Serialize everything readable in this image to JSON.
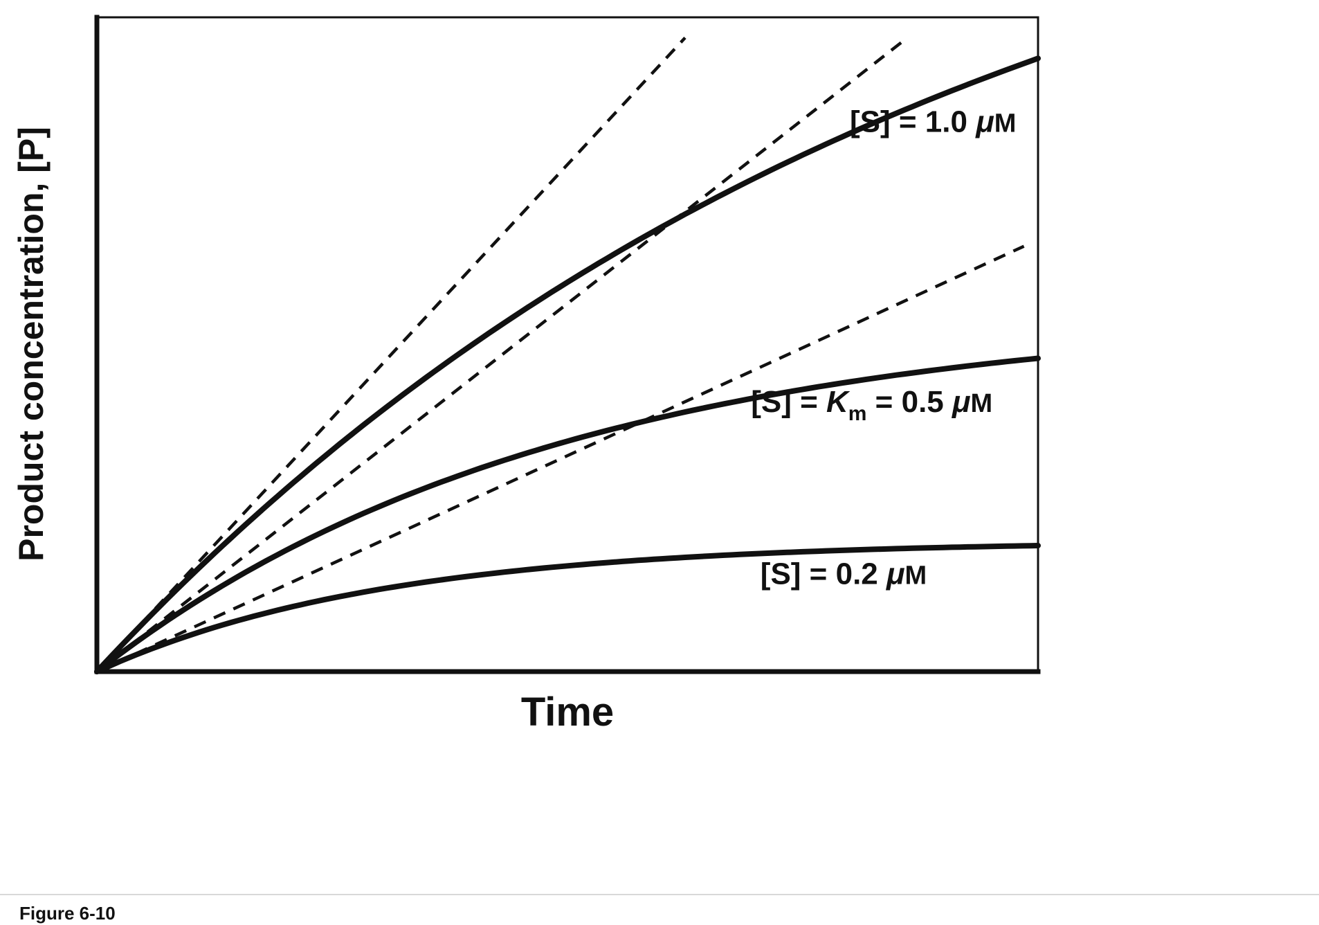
{
  "figure": {
    "caption": "Figure 6-10",
    "x_axis_label": "Time",
    "y_axis_label": "Product concentration, [P]"
  },
  "colors": {
    "ink": "#111111",
    "background": "#ffffff",
    "caption_rule": "#cccccc"
  },
  "chart_data": {
    "type": "line",
    "title": "",
    "xlabel": "Time",
    "ylabel": "Product concentration, [P]",
    "x_range": [
      0,
      1
    ],
    "y_range": [
      0,
      1
    ],
    "ticks": "none (qualitative unlabeled axes)",
    "grid": false,
    "legend_position": "labels drawn next to curves",
    "x_samples": [
      0,
      0.1,
      0.2,
      0.3,
      0.4,
      0.5,
      0.6,
      0.7,
      0.8,
      0.9,
      1.0
    ],
    "series": [
      {
        "name": "[S] = 1.0 μM",
        "line": "solid",
        "model": "y = A*(1-exp(-k*x))",
        "A": 1.4,
        "k": 1.107,
        "y_samples": [
          0,
          0.147,
          0.278,
          0.396,
          0.501,
          0.595,
          0.68,
          0.756,
          0.824,
          0.885,
          0.937
        ],
        "label_parts": [
          {
            "t": "[S] = 1.0 "
          },
          {
            "t": "μ",
            "i": 1
          },
          {
            "t": "M",
            "sc": 1
          }
        ],
        "label_x": 0.8,
        "label_y": 0.825
      },
      {
        "name": "[S] = Km = 0.5 μM",
        "line": "solid",
        "model": "y = A*(1-exp(-k*x))",
        "A": 0.55,
        "k": 2.045,
        "y_samples": [
          0,
          0.102,
          0.185,
          0.252,
          0.307,
          0.352,
          0.389,
          0.419,
          0.443,
          0.463,
          0.479
        ],
        "label_parts": [
          {
            "t": "[S] = "
          },
          {
            "t": "K",
            "i": 1
          },
          {
            "t": "m",
            "sub": 1
          },
          {
            "t": " = 0.5 "
          },
          {
            "t": "μ",
            "i": 1
          },
          {
            "t": "M",
            "sc": 1
          }
        ],
        "label_x": 0.695,
        "label_y": 0.397
      },
      {
        "name": "[S] = 0.2 μM",
        "line": "solid",
        "model": "y = A*(1-exp(-k*x))",
        "A": 0.2,
        "k": 3.3,
        "y_samples": [
          0,
          0.056,
          0.097,
          0.126,
          0.147,
          0.162,
          0.172,
          0.18,
          0.186,
          0.19,
          0.193
        ],
        "label_parts": [
          {
            "t": "[S] = 0.2 "
          },
          {
            "t": "μ",
            "i": 1
          },
          {
            "t": "M",
            "sc": 1
          }
        ],
        "label_x": 0.705,
        "label_y": 0.134
      }
    ],
    "initial_velocity_tangents": [
      {
        "series": "[S] = 1.0 μM",
        "slope": 1.55,
        "x_end": 0.625,
        "line": "dashed"
      },
      {
        "series": "[S] = Km = 0.5 μM",
        "slope": 1.125,
        "x_end": 0.86,
        "line": "dashed"
      },
      {
        "series": "[S] = 0.2 μM",
        "slope": 0.66,
        "x_end": 0.985,
        "line": "dashed"
      }
    ]
  }
}
